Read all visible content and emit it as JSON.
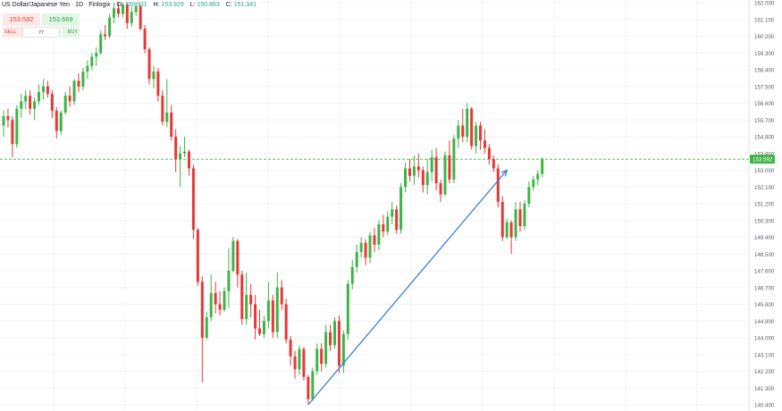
{
  "header": {
    "title": "US Dollar/Japanese Yen · 1D · Finlogix",
    "o_label": "O:",
    "o_value": "150.911",
    "h_label": "H:",
    "h_value": "153.929",
    "l_label": "L:",
    "l_value": "150.863",
    "c_label": "C:",
    "c_value": "151.341"
  },
  "trade_panel": {
    "sell_price": "153.592",
    "buy_price": "153.669",
    "sell_label": "SELL",
    "buy_label": "BUY",
    "quantity": "77"
  },
  "colors": {
    "up": "#3fb446",
    "down": "#e53935",
    "trendline": "#3b7ddd",
    "price_line": "#3fb446",
    "grid": "#f0f3f7"
  },
  "chart_data": {
    "type": "candlestick",
    "ylim": [
      140.4,
      162.0
    ],
    "y_ticks": [
      "162.000",
      "161.100",
      "160.200",
      "159.300",
      "158.400",
      "157.500",
      "156.600",
      "155.700",
      "154.800",
      "153.900",
      "153.000",
      "152.100",
      "151.200",
      "150.300",
      "149.400",
      "148.500",
      "147.600",
      "146.700",
      "145.800",
      "144.900",
      "144.000",
      "143.100",
      "142.200",
      "141.300",
      "140.400"
    ],
    "current_price": 153.592,
    "current_price_label": "153.592",
    "trendline": {
      "from": {
        "index": 69,
        "price": 140.4
      },
      "to": {
        "index": 114,
        "price": 153.0
      }
    },
    "candles": [
      [
        155.4,
        156.2,
        154.8,
        155.9
      ],
      [
        155.9,
        156.3,
        155.3,
        155.7
      ],
      [
        155.7,
        155.9,
        153.7,
        154.4
      ],
      [
        154.4,
        156.5,
        154.2,
        156.3
      ],
      [
        156.3,
        157.1,
        155.8,
        156.7
      ],
      [
        156.7,
        157.3,
        156.3,
        157.0
      ],
      [
        157.0,
        157.3,
        156.0,
        156.3
      ],
      [
        156.3,
        156.9,
        155.7,
        156.7
      ],
      [
        156.7,
        157.6,
        156.5,
        157.2
      ],
      [
        157.2,
        157.9,
        156.8,
        157.5
      ],
      [
        157.5,
        157.8,
        156.9,
        157.1
      ],
      [
        157.1,
        157.3,
        155.8,
        156.2
      ],
      [
        156.2,
        156.4,
        154.7,
        155.1
      ],
      [
        155.1,
        156.2,
        154.9,
        156.1
      ],
      [
        156.1,
        157.2,
        156.0,
        157.0
      ],
      [
        157.0,
        157.5,
        156.4,
        156.7
      ],
      [
        156.7,
        157.9,
        156.5,
        157.8
      ],
      [
        157.8,
        158.2,
        157.2,
        157.5
      ],
      [
        157.5,
        158.5,
        157.3,
        158.3
      ],
      [
        158.3,
        158.9,
        157.9,
        158.6
      ],
      [
        158.6,
        159.3,
        158.4,
        159.1
      ],
      [
        159.1,
        159.6,
        158.6,
        159.3
      ],
      [
        159.3,
        160.5,
        159.2,
        160.3
      ],
      [
        160.3,
        160.8,
        160.0,
        160.2
      ],
      [
        160.2,
        161.4,
        160.1,
        161.2
      ],
      [
        161.2,
        162.0,
        160.9,
        161.7
      ],
      [
        161.7,
        162.0,
        161.2,
        161.4
      ],
      [
        161.4,
        162.0,
        161.2,
        161.9
      ],
      [
        161.9,
        162.0,
        160.6,
        160.9
      ],
      [
        160.9,
        161.8,
        160.7,
        161.5
      ],
      [
        161.5,
        162.0,
        161.3,
        161.8
      ],
      [
        161.8,
        161.9,
        160.5,
        160.6
      ],
      [
        160.6,
        160.8,
        159.3,
        159.5
      ],
      [
        159.5,
        159.6,
        157.6,
        157.9
      ],
      [
        157.9,
        158.6,
        157.4,
        158.3
      ],
      [
        158.3,
        158.5,
        156.7,
        157.0
      ],
      [
        157.0,
        157.3,
        155.4,
        155.6
      ],
      [
        155.6,
        157.9,
        155.3,
        156.1
      ],
      [
        156.1,
        156.5,
        154.6,
        154.8
      ],
      [
        154.8,
        155.2,
        152.9,
        153.6
      ],
      [
        153.6,
        154.3,
        152.1,
        153.9
      ],
      [
        153.9,
        154.8,
        153.7,
        154.0
      ],
      [
        154.0,
        154.1,
        152.7,
        153.1
      ],
      [
        153.1,
        153.3,
        149.3,
        149.8
      ],
      [
        149.8,
        149.9,
        146.8,
        147.0
      ],
      [
        147.0,
        147.3,
        141.6,
        144.0
      ],
      [
        144.0,
        145.4,
        143.9,
        145.1
      ],
      [
        145.1,
        147.4,
        144.9,
        146.4
      ],
      [
        146.4,
        147.0,
        145.3,
        145.8
      ],
      [
        145.8,
        146.5,
        145.2,
        145.5
      ],
      [
        145.5,
        146.7,
        145.4,
        146.5
      ],
      [
        146.5,
        148.8,
        145.6,
        147.6
      ],
      [
        147.6,
        149.4,
        147.5,
        149.2
      ],
      [
        149.2,
        149.3,
        146.7,
        147.4
      ],
      [
        147.4,
        147.6,
        144.7,
        145.0
      ],
      [
        145.0,
        147.5,
        144.7,
        146.3
      ],
      [
        146.3,
        146.9,
        145.1,
        145.8
      ],
      [
        145.8,
        146.3,
        143.9,
        144.5
      ],
      [
        144.5,
        145.5,
        144.1,
        144.2
      ],
      [
        144.2,
        145.2,
        144.0,
        144.9
      ],
      [
        144.9,
        147.0,
        144.5,
        146.0
      ],
      [
        146.0,
        146.3,
        144.0,
        144.3
      ],
      [
        144.3,
        147.5,
        144.0,
        146.7
      ],
      [
        146.7,
        147.1,
        145.5,
        145.8
      ],
      [
        145.8,
        146.1,
        143.7,
        143.9
      ],
      [
        143.9,
        144.1,
        142.5,
        143.0
      ],
      [
        143.0,
        143.3,
        141.8,
        142.3
      ],
      [
        142.3,
        143.6,
        142.0,
        143.4
      ],
      [
        143.4,
        143.5,
        141.7,
        141.9
      ],
      [
        141.9,
        142.0,
        140.4,
        140.7
      ],
      [
        140.7,
        142.4,
        140.6,
        142.2
      ],
      [
        142.2,
        143.7,
        142.0,
        143.4
      ],
      [
        143.4,
        143.7,
        142.2,
        142.6
      ],
      [
        142.6,
        144.7,
        142.4,
        144.3
      ],
      [
        144.3,
        144.7,
        143.3,
        143.6
      ],
      [
        143.6,
        145.1,
        143.4,
        144.9
      ],
      [
        144.9,
        145.2,
        142.1,
        142.5
      ],
      [
        142.5,
        144.4,
        142.1,
        144.2
      ],
      [
        144.2,
        147.1,
        143.9,
        146.9
      ],
      [
        146.9,
        148.2,
        146.6,
        147.8
      ],
      [
        147.8,
        149.0,
        147.5,
        148.6
      ],
      [
        148.6,
        149.4,
        148.3,
        149.1
      ],
      [
        149.1,
        149.3,
        147.9,
        148.3
      ],
      [
        148.3,
        149.7,
        148.0,
        149.5
      ],
      [
        149.5,
        149.9,
        148.6,
        149.0
      ],
      [
        149.0,
        150.3,
        148.7,
        150.1
      ],
      [
        150.1,
        150.6,
        149.4,
        149.7
      ],
      [
        149.7,
        150.8,
        149.5,
        150.5
      ],
      [
        150.5,
        151.3,
        150.1,
        150.9
      ],
      [
        150.9,
        151.1,
        149.6,
        149.8
      ],
      [
        149.8,
        152.3,
        149.6,
        152.1
      ],
      [
        152.1,
        153.4,
        151.8,
        153.1
      ],
      [
        153.1,
        153.6,
        152.4,
        152.7
      ],
      [
        152.7,
        153.8,
        152.2,
        153.2
      ],
      [
        153.2,
        153.9,
        152.6,
        153.0
      ],
      [
        153.0,
        153.2,
        151.8,
        152.2
      ],
      [
        152.2,
        153.6,
        151.7,
        152.9
      ],
      [
        152.9,
        154.1,
        152.4,
        153.7
      ],
      [
        153.7,
        154.2,
        151.9,
        152.3
      ],
      [
        152.3,
        152.5,
        151.3,
        151.7
      ],
      [
        151.7,
        154.0,
        151.6,
        153.8
      ],
      [
        153.8,
        154.6,
        152.3,
        152.5
      ],
      [
        152.5,
        154.9,
        152.3,
        154.7
      ],
      [
        154.7,
        155.7,
        154.2,
        155.4
      ],
      [
        155.4,
        156.3,
        154.5,
        154.8
      ],
      [
        154.8,
        156.6,
        154.5,
        156.3
      ],
      [
        156.3,
        156.4,
        154.1,
        154.3
      ],
      [
        154.3,
        155.6,
        153.9,
        155.4
      ],
      [
        155.4,
        155.6,
        154.1,
        154.6
      ],
      [
        154.6,
        155.2,
        153.9,
        154.2
      ],
      [
        154.2,
        154.4,
        153.3,
        153.6
      ],
      [
        153.6,
        153.8,
        152.9,
        153.1
      ],
      [
        153.1,
        153.3,
        151.0,
        151.3
      ],
      [
        151.3,
        151.6,
        149.2,
        149.4
      ],
      [
        149.4,
        150.4,
        149.3,
        150.2
      ],
      [
        150.2,
        150.3,
        148.5,
        149.4
      ],
      [
        149.4,
        151.3,
        149.2,
        150.9
      ],
      [
        150.9,
        151.3,
        149.7,
        150.0
      ],
      [
        150.0,
        151.4,
        149.8,
        151.2
      ],
      [
        151.2,
        152.4,
        151.0,
        152.1
      ],
      [
        152.1,
        152.7,
        151.9,
        152.5
      ],
      [
        152.5,
        153.0,
        152.2,
        152.8
      ],
      [
        152.8,
        153.7,
        152.6,
        153.6
      ]
    ]
  }
}
